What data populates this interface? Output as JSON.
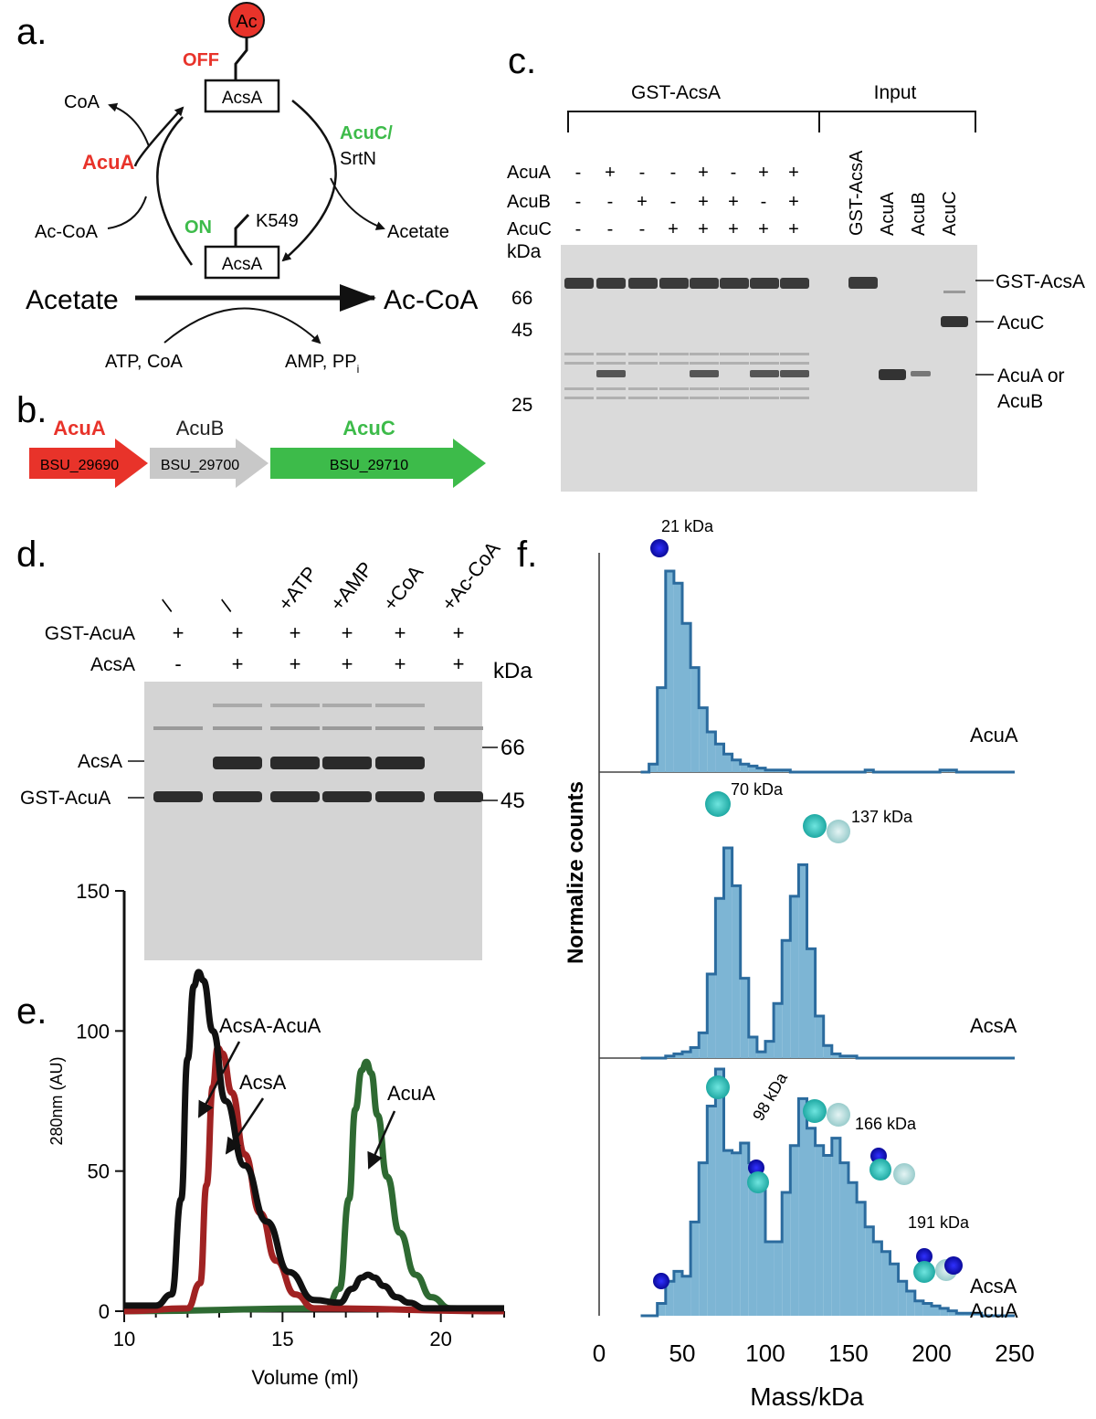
{
  "panels": {
    "a": {
      "letter": "a.",
      "box_top": "AcsA",
      "box_bottom": "AcsA",
      "ac": "Ac",
      "off": "OFF",
      "on": "ON",
      "k549": "K549",
      "coa": "CoA",
      "acua": "AcuA",
      "ac_coa_left": "Ac-CoA",
      "acuc": "AcuC/",
      "srtn": "SrtN",
      "acetate_right": "Acetate",
      "acetate_main": "Acetate",
      "ac_coa_main": "Ac-CoA",
      "atp_coa": "ATP, CoA",
      "amp_pp": "AMP, PP",
      "pp_sub": "i",
      "colors": {
        "red": "#e8332a",
        "green": "#3dbb4a"
      }
    },
    "b": {
      "letter": "b.",
      "genes": [
        {
          "name": "AcuA",
          "locus": "BSU_29690",
          "color": "#e8332a"
        },
        {
          "name": "AcuB",
          "locus": "BSU_29700",
          "color": "#c8c8c8"
        },
        {
          "name": "AcuC",
          "locus": "BSU_29710",
          "color": "#3dbb4a"
        }
      ]
    },
    "c": {
      "letter": "c.",
      "group_left": "GST-AcsA",
      "group_right": "Input",
      "row_labels": [
        "AcuA",
        "AcuB",
        "AcuC"
      ],
      "lanes": [
        [
          "-",
          "-",
          "-"
        ],
        [
          "+",
          "-",
          "-"
        ],
        [
          "-",
          "+",
          "-"
        ],
        [
          "-",
          "-",
          "+"
        ],
        [
          "+",
          "+",
          "+"
        ],
        [
          "-",
          "+",
          "+"
        ],
        [
          "+",
          "-",
          "+"
        ],
        [
          "+",
          "+",
          "+"
        ]
      ],
      "input_lanes": [
        "GST-AcsA",
        "AcuA",
        "AcuB",
        "AcuC"
      ],
      "kda": "kDa",
      "markers": [
        "66",
        "45",
        "25"
      ],
      "band_labels": [
        "GST-AcsA",
        "AcuC",
        "AcuA or",
        "AcuB"
      ]
    },
    "d": {
      "letter": "d.",
      "lane_headers": [
        "/",
        "/",
        "+ATP",
        "+AMP",
        "+CoA",
        "+Ac-CoA"
      ],
      "rows": [
        {
          "label": "GST-AcuA",
          "signs": [
            "+",
            "+",
            "+",
            "+",
            "+",
            "+"
          ]
        },
        {
          "label": "AcsA",
          "signs": [
            "-",
            "+",
            "+",
            "+",
            "+",
            "+"
          ]
        }
      ],
      "kda": "kDa",
      "markers": [
        "66",
        "45"
      ],
      "band_labels": [
        "AcsA",
        "GST-AcuA"
      ]
    },
    "e": {
      "letter": "e."
    },
    "f": {
      "letter": "f."
    }
  },
  "chart_data": [
    {
      "panel": "e",
      "type": "line",
      "xlabel": "Volume (ml)",
      "ylabel": "280nm (AU)",
      "xlim": [
        10,
        22
      ],
      "ylim": [
        0,
        150
      ],
      "x_ticks": [
        "10",
        "15",
        "20"
      ],
      "y_ticks": [
        "0",
        "50",
        "100",
        "150"
      ],
      "annotations": [
        "AcsA-AcuA",
        "AcsA",
        "AcuA"
      ],
      "series": [
        {
          "name": "AcsA-AcuA",
          "color": "#111111",
          "x": [
            10,
            11,
            11.5,
            11.8,
            12.0,
            12.2,
            12.35,
            12.5,
            12.8,
            13.2,
            13.8,
            14.5,
            15.2,
            16.0,
            16.8,
            17.2,
            17.5,
            17.7,
            17.9,
            18.2,
            18.6,
            19.0,
            19.5,
            22
          ],
          "y": [
            2,
            2,
            6,
            40,
            90,
            116,
            121,
            118,
            100,
            75,
            52,
            32,
            14,
            4,
            3,
            8,
            12,
            13,
            12,
            9,
            5,
            3,
            1,
            1
          ]
        },
        {
          "name": "AcsA",
          "color": "#a02222",
          "x": [
            10,
            12.0,
            12.4,
            12.6,
            12.8,
            12.95,
            13.1,
            13.4,
            13.8,
            14.3,
            14.8,
            15.4,
            16.0,
            22
          ],
          "y": [
            0,
            1,
            10,
            45,
            80,
            94,
            92,
            78,
            56,
            35,
            18,
            6,
            1,
            0
          ]
        },
        {
          "name": "AcuA",
          "color": "#2e6a32",
          "x": [
            10,
            16.4,
            16.8,
            17.1,
            17.3,
            17.5,
            17.65,
            17.8,
            18.0,
            18.3,
            18.7,
            19.2,
            19.7,
            20.3,
            22
          ],
          "y": [
            0,
            1,
            8,
            40,
            72,
            86,
            89,
            85,
            70,
            48,
            28,
            13,
            5,
            1,
            0
          ]
        }
      ]
    },
    {
      "panel": "f",
      "type": "bar",
      "xlabel": "Mass/kDa",
      "ylabel": "Normalize counts",
      "xlim": [
        0,
        250
      ],
      "x_ticks": [
        "0",
        "50",
        "100",
        "150",
        "200",
        "250"
      ],
      "bin_width": 5,
      "bin_start": 25,
      "subplots": [
        {
          "label": "AcuA",
          "annotations": [
            "21 kDa"
          ],
          "ymax": 100,
          "counts": [
            0,
            4,
            42,
            100,
            94,
            74,
            52,
            32,
            20,
            14,
            9,
            6,
            4,
            3,
            2,
            1,
            1,
            1,
            0,
            0,
            0,
            0,
            0,
            0,
            0,
            0,
            0,
            1,
            0,
            0,
            0,
            0,
            0,
            0,
            0,
            0,
            1,
            1,
            0,
            0,
            0,
            0,
            0,
            0,
            0
          ]
        },
        {
          "label": "AcsA",
          "annotations": [
            "70 kDa",
            "137 kDa"
          ],
          "ymax": 100,
          "counts": [
            0,
            0,
            0,
            1,
            2,
            3,
            5,
            12,
            40,
            76,
            100,
            82,
            38,
            10,
            3,
            8,
            26,
            56,
            77,
            92,
            52,
            20,
            6,
            2,
            1,
            1,
            0,
            0,
            0,
            0,
            0,
            0,
            0,
            0,
            0,
            0,
            0,
            0,
            0,
            0,
            0,
            0,
            0,
            0,
            0
          ]
        },
        {
          "label": "AcsA\nAcuA",
          "annotations": [
            "98 kDa",
            "166 kDa",
            "191 kDa"
          ],
          "ymax": 100,
          "counts": [
            0,
            0,
            5,
            14,
            18,
            16,
            38,
            62,
            85,
            100,
            67,
            66,
            70,
            62,
            52,
            30,
            30,
            50,
            69,
            88,
            76,
            69,
            65,
            72,
            62,
            54,
            46,
            36,
            30,
            26,
            21,
            14,
            10,
            6,
            5,
            4,
            3,
            2,
            1,
            1,
            1,
            0,
            0,
            0,
            0
          ]
        }
      ],
      "subplot_labels": [
        "AcuA",
        "AcsA",
        "AcsA",
        "AcuA"
      ]
    }
  ]
}
